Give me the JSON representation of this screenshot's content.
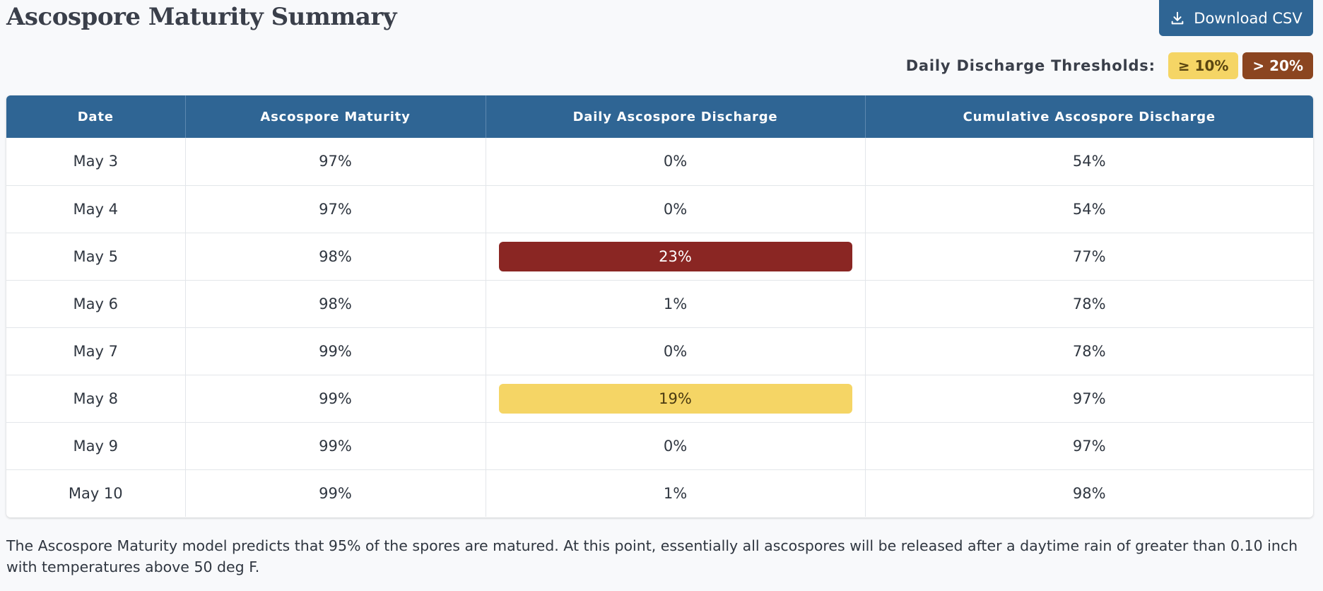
{
  "header": {
    "title": "Ascospore Maturity Summary",
    "download_label": "Download CSV"
  },
  "thresholds": {
    "label": "Daily Discharge Thresholds:",
    "low_badge": "≥ 10%",
    "high_badge": "> 20%",
    "colors": {
      "low": "#f5d565",
      "high": "#8b4520",
      "row_high": "#8a2623"
    }
  },
  "table": {
    "columns": [
      "Date",
      "Ascospore Maturity",
      "Daily Ascospore Discharge",
      "Cumulative Ascospore Discharge"
    ],
    "rows": [
      {
        "date": "May 3",
        "maturity": "97%",
        "daily": "0%",
        "cumulative": "54%",
        "level": "none"
      },
      {
        "date": "May 4",
        "maturity": "97%",
        "daily": "0%",
        "cumulative": "54%",
        "level": "none"
      },
      {
        "date": "May 5",
        "maturity": "98%",
        "daily": "23%",
        "cumulative": "77%",
        "level": "high"
      },
      {
        "date": "May 6",
        "maturity": "98%",
        "daily": "1%",
        "cumulative": "78%",
        "level": "none"
      },
      {
        "date": "May 7",
        "maturity": "99%",
        "daily": "0%",
        "cumulative": "78%",
        "level": "none"
      },
      {
        "date": "May 8",
        "maturity": "99%",
        "daily": "19%",
        "cumulative": "97%",
        "level": "low"
      },
      {
        "date": "May 9",
        "maturity": "99%",
        "daily": "0%",
        "cumulative": "97%",
        "level": "none"
      },
      {
        "date": "May 10",
        "maturity": "99%",
        "daily": "1%",
        "cumulative": "98%",
        "level": "none"
      }
    ]
  },
  "footnote": "The Ascospore Maturity model predicts that 95% of the spores are matured. At this point, essentially all ascospores will be released after a daytime rain of greater than 0.10 inch with temperatures above 50 deg F."
}
